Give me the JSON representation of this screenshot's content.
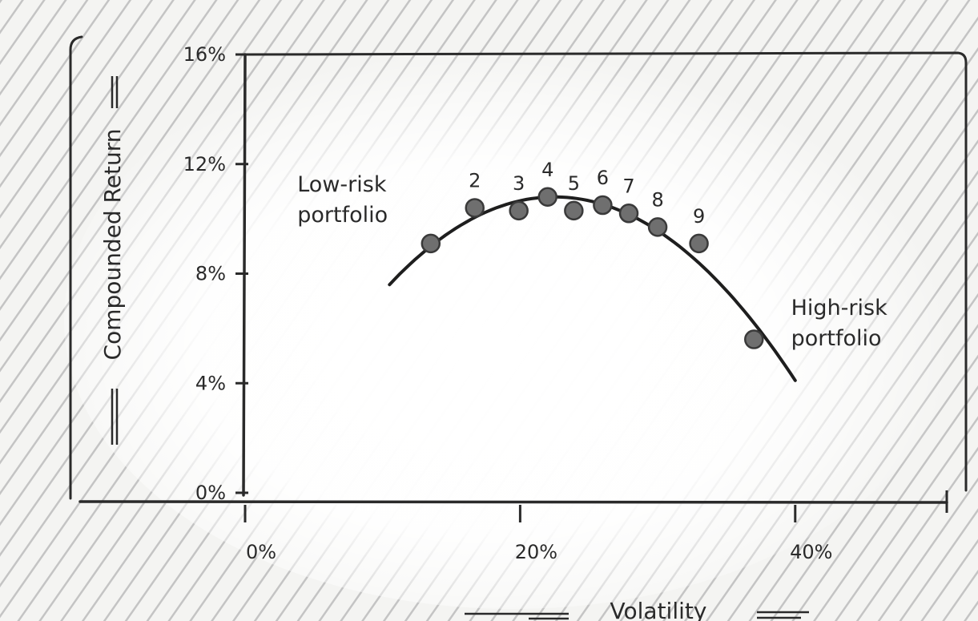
{
  "chart_data": {
    "type": "scatter",
    "title": "",
    "xlabel": "Volatility",
    "ylabel": "Compounded Return",
    "xlim": [
      0,
      50
    ],
    "ylim": [
      0,
      16
    ],
    "x_ticks": [
      0,
      20,
      40
    ],
    "x_tick_labels": [
      "0%",
      "20%",
      "40%"
    ],
    "y_ticks": [
      0,
      4,
      8,
      12,
      16
    ],
    "y_tick_labels": [
      "0%",
      "4%",
      "8%",
      "12%",
      "16%"
    ],
    "grid": false,
    "legend": "none",
    "points": [
      {
        "label": "",
        "x": 13.5,
        "y": 9.1
      },
      {
        "label": "2",
        "x": 16.7,
        "y": 10.4
      },
      {
        "label": "3",
        "x": 19.9,
        "y": 10.3
      },
      {
        "label": "4",
        "x": 22.0,
        "y": 10.8
      },
      {
        "label": "5",
        "x": 23.9,
        "y": 10.3
      },
      {
        "label": "6",
        "x": 26.0,
        "y": 10.5
      },
      {
        "label": "7",
        "x": 27.9,
        "y": 10.2
      },
      {
        "label": "8",
        "x": 30.0,
        "y": 9.7
      },
      {
        "label": "9",
        "x": 33.0,
        "y": 9.1
      },
      {
        "label": "",
        "x": 37.0,
        "y": 5.6
      }
    ],
    "curve": {
      "type": "parabola",
      "x_peak": 22.5,
      "y_peak": 10.8,
      "x_start": 10.5,
      "x_end": 40.0,
      "y_start": 7.6,
      "y_end": 4.1
    },
    "annotations": [
      {
        "lines": [
          "Low-risk",
          "portfolio"
        ],
        "x": 3.8,
        "y": 11.0
      },
      {
        "lines": [
          "High-risk",
          "portfolio"
        ],
        "x": 39.7,
        "y": 6.5
      }
    ],
    "colors": {
      "point": "#6f6f6f",
      "line": "#1e1e1e",
      "frame": "#2a2a2a",
      "hatch": "#bdbdbd"
    }
  }
}
